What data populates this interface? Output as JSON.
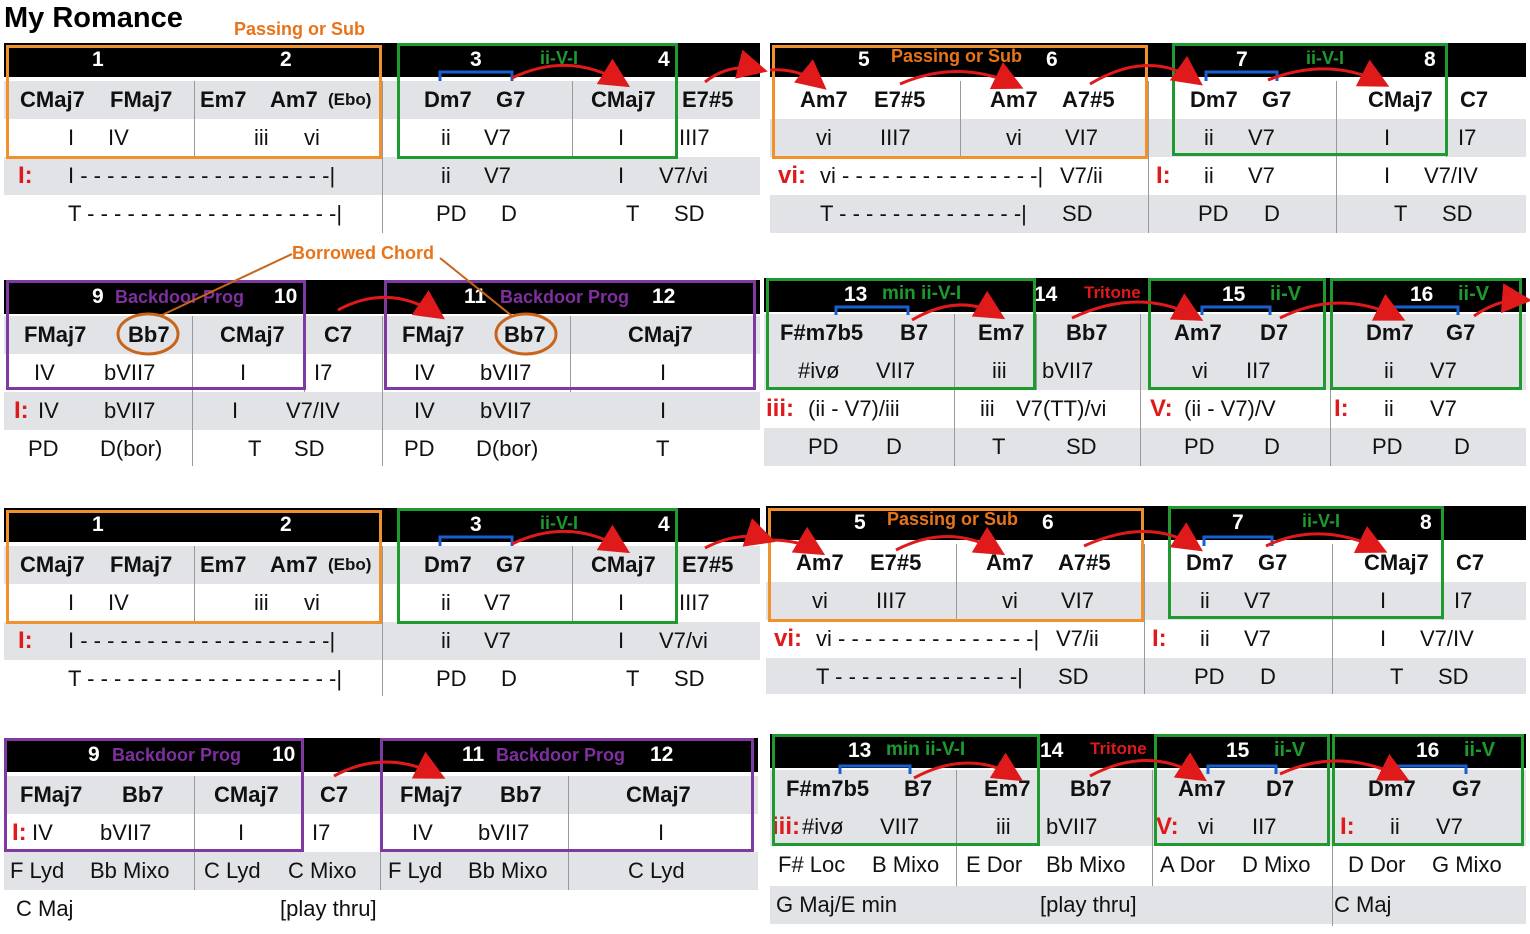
{
  "title": "My Romance",
  "annotations": {
    "passing_or_sub": "Passing or Sub",
    "ii_v_i": "ii-V-I",
    "ii_v": "ii-V",
    "min_ii_v_i": "min ii-V-I",
    "backdoor_prog": "Backdoor Prog",
    "tritone": "Tritone",
    "borrowed_chord": "Borrowed Chord"
  },
  "measures": {
    "m1": "1",
    "m2": "2",
    "m3": "3",
    "m4": "4",
    "m5": "5",
    "m6": "6",
    "m7": "7",
    "m8": "8",
    "m9": "9",
    "m10": "10",
    "m11": "11",
    "m12": "12",
    "m13": "13",
    "m14": "14",
    "m15": "15",
    "m16": "16"
  },
  "chords": {
    "CMaj7": "CMaj7",
    "FMaj7": "FMaj7",
    "Em7": "Em7",
    "Am7": "Am7",
    "Ebo": "(Ebo)",
    "Dm7": "Dm7",
    "G7": "G7",
    "E7s5": "E7#5",
    "A7s5": "A7#5",
    "C7": "C7",
    "Bb7": "Bb7",
    "Fsm7b5": "F#m7b5",
    "B7": "B7",
    "D7": "D7"
  },
  "roman": {
    "I": "I",
    "IV": "IV",
    "iii": "iii",
    "vi": "vi",
    "ii": "ii",
    "V7": "V7",
    "III7": "III7",
    "VI7": "VI7",
    "I7": "I7",
    "bVII7": "bVII7",
    "ivo": "#ivø",
    "VII7": "VII7",
    "II7": "II7",
    "V7vi": "V7/vi",
    "V7ii": "V7/ii",
    "V7IV": "V7/IV",
    "iiV7iii": "(ii - V7)/iii",
    "V7TTvi": "V7(TT)/vi",
    "iiV7V": "(ii - V7)/V"
  },
  "keys": {
    "I": "I:",
    "vi": "vi:",
    "iii": "iii:",
    "V": "V:"
  },
  "functions": {
    "T": "T",
    "PD": "PD",
    "D": "D",
    "SD": "SD",
    "Dbor": "D(bor)"
  },
  "dashes": {
    "I_line": "I - - - - - - - - - - - - - - - - - - -|",
    "T_line": "T - - - - - - - - - - - - - - - - - - -|",
    "vi_line": "vi - - - - - - - - - - - - - - -|",
    "T_line2": "T - - - - - - - - - - - - - -|"
  },
  "modes": {
    "FLyd": "F Lyd",
    "BbMixo": "Bb Mixo",
    "CLyd": "C Lyd",
    "CMixo": "C Mixo",
    "FsLoc": "F# Loc",
    "BMixo": "B Mixo",
    "EDor": "E Dor",
    "ADor": "A Dor",
    "DMixo": "D Mixo",
    "DDor": "D Dor",
    "GMixo": "G Mixo"
  },
  "bottom": {
    "CMaj": "C Maj",
    "play_thru": "[play thru]",
    "GMajEmin": "G Maj/E min"
  },
  "colors": {
    "orange": "#f0912d",
    "green": "#1e9a30",
    "purple": "#7e3aa0",
    "red": "#e01a1a",
    "blue": "#1a5fd0",
    "gray_row": "#e1e3e7"
  }
}
